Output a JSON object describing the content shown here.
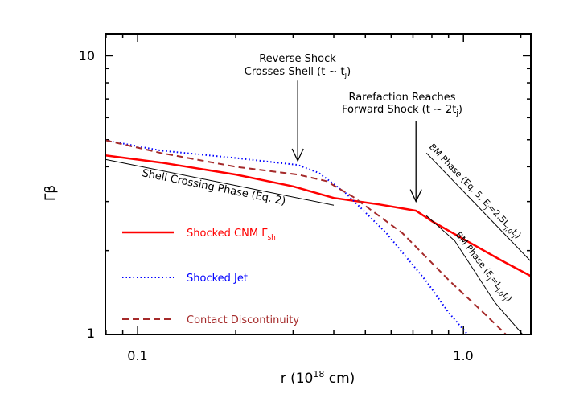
{
  "chart_data": {
    "type": "line",
    "xlabel": {
      "main": "r (10",
      "sup": "18",
      "end": " cm)"
    },
    "ylabel": "Γβ",
    "xscale": "log",
    "yscale": "log",
    "xlim": [
      0.0796,
      1.61
    ],
    "ylim": [
      1,
      12
    ],
    "xticks": [
      {
        "value": 0.1,
        "label": "0.1"
      },
      {
        "value": 1.0,
        "label": "1.0"
      }
    ],
    "yticks": [
      {
        "value": 1,
        "label": "1"
      },
      {
        "value": 10,
        "label": "10"
      }
    ],
    "grid": false,
    "legend_position": "left",
    "series": [
      {
        "name": "Shocked CNM Γ",
        "name_sub": "sh",
        "color": "#ff0000",
        "style": "solid",
        "x": [
          0.0796,
          0.118,
          0.2,
          0.3,
          0.4,
          0.55,
          0.715,
          0.8,
          1.0,
          1.3,
          1.61
        ],
        "y": [
          4.39,
          4.14,
          3.75,
          3.4,
          3.09,
          2.93,
          2.78,
          2.55,
          2.2,
          1.85,
          1.62
        ]
      },
      {
        "name": "Shocked Jet",
        "color": "#0000ff",
        "style": "dotted",
        "x": [
          0.0796,
          0.118,
          0.2,
          0.31,
          0.36,
          0.436,
          0.58,
          0.77,
          0.9,
          1.03
        ],
        "y": [
          4.98,
          4.57,
          4.3,
          4.06,
          3.8,
          3.21,
          2.31,
          1.55,
          1.2,
          1.0
        ]
      },
      {
        "name": "Contact Discontinuity",
        "color": "#a52a2a",
        "style": "dashed",
        "x": [
          0.0796,
          0.118,
          0.2,
          0.31,
          0.38,
          0.46,
          0.65,
          0.91,
          1.15,
          1.35
        ],
        "y": [
          4.98,
          4.48,
          4.0,
          3.75,
          3.55,
          3.11,
          2.31,
          1.55,
          1.2,
          1.0
        ]
      }
    ],
    "reference_lines": [
      {
        "label": "Shell Crossing Phase (Eq. 2)",
        "x": [
          0.0796,
          0.4
        ],
        "y": [
          4.25,
          2.91
        ]
      },
      {
        "label_parts": [
          "BM Phase (Eq. 5, E",
          "j",
          "=2.5L",
          "j,0",
          "t",
          "j",
          ")"
        ],
        "x": [
          0.77,
          1.61
        ],
        "y": [
          4.48,
          1.83
        ]
      },
      {
        "label_parts": [
          "BM Phase (E",
          "j",
          "=L",
          "j,0",
          "t",
          "j",
          ")"
        ],
        "x": [
          0.77,
          0.94,
          1.25,
          1.52
        ],
        "y": [
          2.67,
          2.17,
          1.3,
          1.0
        ]
      }
    ],
    "annotations": [
      {
        "lines": [
          "Reverse Shock",
          "Crosses Shell (t ~ t"
        ],
        "sub": "j",
        "close": ")",
        "arrow_x": 0.31,
        "arrow_y": [
          8.15,
          4.2
        ]
      },
      {
        "lines": [
          "Rarefaction Reaches",
          "Forward Shock (t ~ 2t"
        ],
        "sub": "j",
        "close": ")",
        "arrow_x": 0.715,
        "arrow_y": [
          5.83,
          3.0
        ]
      }
    ]
  }
}
